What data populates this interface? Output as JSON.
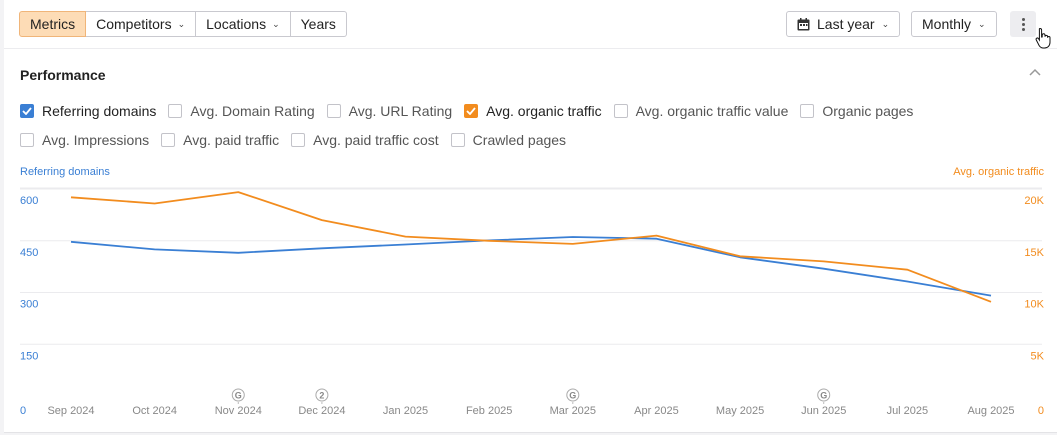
{
  "toolbar": {
    "tabs": [
      {
        "label": "Metrics",
        "active": true,
        "dropdown": false
      },
      {
        "label": "Competitors",
        "active": false,
        "dropdown": true
      },
      {
        "label": "Locations",
        "active": false,
        "dropdown": true
      },
      {
        "label": "Years",
        "active": false,
        "dropdown": false
      }
    ],
    "period": {
      "label": "Last year",
      "icon": "calendar-icon"
    },
    "granularity": {
      "label": "Monthly"
    },
    "more_icon": "more-vertical-icon"
  },
  "section": {
    "title": "Performance",
    "collapse_icon": "chevron-up-icon"
  },
  "metrics_row1": [
    {
      "label": "Referring domains",
      "checked": true,
      "color": "#3a7fd4"
    },
    {
      "label": "Avg. Domain Rating",
      "checked": false
    },
    {
      "label": "Avg. URL Rating",
      "checked": false
    },
    {
      "label": "Avg. organic traffic",
      "checked": true,
      "color": "#f28c1e"
    },
    {
      "label": "Avg. organic traffic value",
      "checked": false
    },
    {
      "label": "Organic pages",
      "checked": false
    }
  ],
  "metrics_row2": [
    {
      "label": "Avg. Impressions",
      "checked": false
    },
    {
      "label": "Avg. paid traffic",
      "checked": false
    },
    {
      "label": "Avg. paid traffic cost",
      "checked": false
    },
    {
      "label": "Crawled pages",
      "checked": false
    }
  ],
  "chart_data": {
    "type": "line",
    "x": [
      "Sep 2024",
      "Oct 2024",
      "Nov 2024",
      "Dec 2024",
      "Jan 2025",
      "Feb 2025",
      "Mar 2025",
      "Apr 2025",
      "May 2025",
      "Jun 2025",
      "Jul 2025",
      "Aug 2025"
    ],
    "y_left": {
      "label": "Referring domains",
      "ticks": [
        "0",
        "150",
        "300",
        "450",
        "600"
      ],
      "range": [
        0,
        600
      ],
      "color": "#3a7fd4"
    },
    "y_right": {
      "label": "Avg. organic traffic",
      "ticks": [
        "0",
        "5K",
        "10K",
        "15K",
        "20K"
      ],
      "range": [
        0,
        20000
      ],
      "color": "#f28c1e"
    },
    "series": [
      {
        "name": "Referring domains",
        "axis": "left",
        "color": "#3a7fd4",
        "values": [
          447,
          425,
          415,
          428,
          439,
          451,
          461,
          456,
          402,
          369,
          332,
          291
        ]
      },
      {
        "name": "Avg. organic traffic",
        "axis": "right",
        "color": "#f28c1e",
        "values": [
          19200,
          18600,
          19700,
          17000,
          15400,
          15000,
          14700,
          15500,
          13500,
          13000,
          12200,
          9100
        ]
      }
    ],
    "annotations": [
      {
        "x": "Nov 2024",
        "label": "G"
      },
      {
        "x": "Dec 2024",
        "label": "2"
      },
      {
        "x": "Mar 2025",
        "label": "G"
      },
      {
        "x": "Jun 2025",
        "label": "G"
      }
    ],
    "grid": true
  }
}
